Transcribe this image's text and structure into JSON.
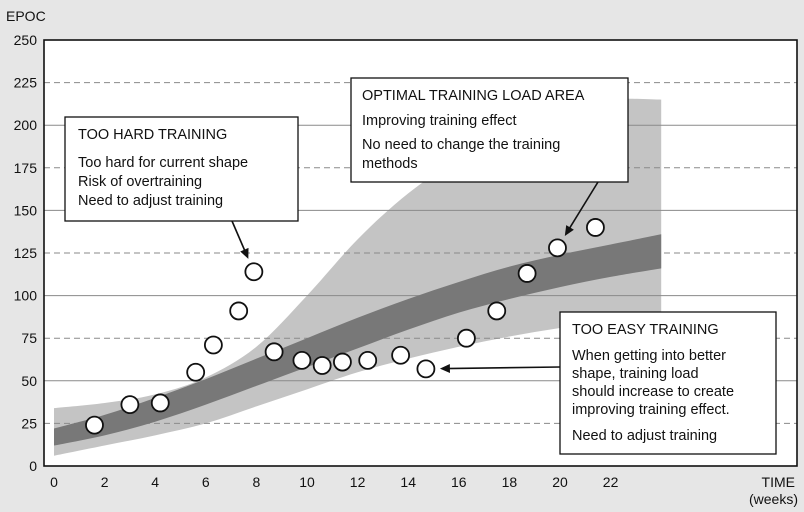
{
  "chart_data": {
    "type": "scatter",
    "title": "",
    "ylabel": "EPOC",
    "xlabel": "TIME",
    "xlabel_unit": "(weeks)",
    "xlim": [
      0,
      24
    ],
    "ylim": [
      0,
      250
    ],
    "x_ticks": [
      0,
      2,
      4,
      6,
      8,
      10,
      12,
      14,
      16,
      18,
      20,
      22
    ],
    "x_tick_labels": [
      "0",
      "2",
      "4",
      "6",
      "8",
      "10",
      "12",
      "14",
      "16",
      "18",
      "20",
      "22"
    ],
    "y_ticks": [
      0,
      25,
      50,
      75,
      100,
      125,
      150,
      175,
      200,
      225,
      250
    ],
    "y_tick_labels": [
      "0",
      "25",
      "50",
      "75",
      "100",
      "125",
      "150",
      "175",
      "200",
      "225",
      "250"
    ],
    "gridlines": {
      "solid": [
        50,
        100,
        150,
        200
      ],
      "dashed": [
        25,
        75,
        125,
        175,
        225
      ]
    },
    "points": [
      {
        "x": 1.6,
        "y": 24
      },
      {
        "x": 3.0,
        "y": 36
      },
      {
        "x": 4.2,
        "y": 37
      },
      {
        "x": 5.6,
        "y": 55
      },
      {
        "x": 6.3,
        "y": 71
      },
      {
        "x": 7.3,
        "y": 91
      },
      {
        "x": 7.9,
        "y": 114
      },
      {
        "x": 8.7,
        "y": 67
      },
      {
        "x": 9.8,
        "y": 62
      },
      {
        "x": 10.6,
        "y": 59
      },
      {
        "x": 11.4,
        "y": 61
      },
      {
        "x": 12.4,
        "y": 62
      },
      {
        "x": 13.7,
        "y": 65
      },
      {
        "x": 14.7,
        "y": 57
      },
      {
        "x": 16.3,
        "y": 75
      },
      {
        "x": 17.5,
        "y": 91
      },
      {
        "x": 18.7,
        "y": 113
      },
      {
        "x": 19.9,
        "y": 128
      },
      {
        "x": 21.4,
        "y": 140
      }
    ],
    "optimal_band": {
      "x": [
        0,
        2,
        4,
        6,
        8,
        10,
        12,
        14,
        16,
        18,
        20,
        22,
        24
      ],
      "upper": [
        22,
        30,
        40,
        51,
        63,
        75,
        87,
        98,
        108,
        117,
        124,
        130,
        136
      ],
      "lower": [
        12,
        18,
        26,
        36,
        47,
        58,
        69,
        80,
        90,
        98,
        105,
        111,
        116
      ]
    },
    "improving_area": {
      "x": [
        0,
        2,
        4,
        6,
        8,
        10,
        12,
        14,
        16,
        18,
        20,
        22,
        24
      ],
      "upper": [
        34,
        37,
        42,
        52,
        70,
        100,
        133,
        160,
        180,
        196,
        208,
        215,
        215
      ],
      "lower": [
        6,
        12,
        18,
        25,
        35,
        45,
        55,
        63,
        70,
        76,
        81,
        85,
        85
      ]
    },
    "annotations": [
      {
        "id": "too-hard",
        "title": "TOO HARD TRAINING",
        "lines": [
          "Too hard for current shape",
          "Risk of overtraining",
          "Need to adjust training"
        ]
      },
      {
        "id": "optimal",
        "title": "OPTIMAL TRAINING LOAD AREA",
        "lines": [
          "Improving training effect",
          "No need to change the training",
          "methods"
        ]
      },
      {
        "id": "too-easy",
        "title": "TOO EASY TRAINING",
        "lines": [
          "When getting into better",
          "shape, training load",
          "should increase to create",
          "improving training effect.",
          "Need to adjust training"
        ]
      }
    ],
    "colors": {
      "background": "#e6e6e6",
      "plot_background": "#ffffff",
      "improving_area": "#c4c4c4",
      "optimal_band": "#787878",
      "grid": "#8a8a8a",
      "marker_fill": "#ffffff",
      "marker_stroke": "#111111"
    }
  }
}
